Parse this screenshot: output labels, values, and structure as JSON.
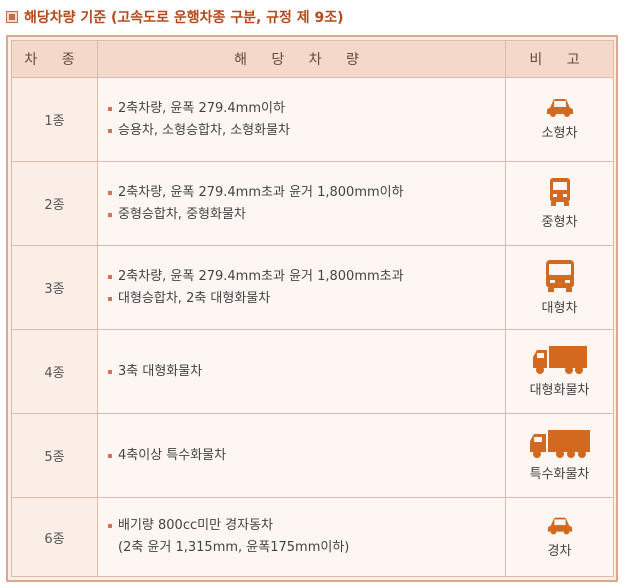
{
  "title": "해당차량 기준 (고속도로 운행차종 구분, 규정 제 9조)",
  "header": {
    "kind": "차 종",
    "desc": "해 당 차 량",
    "note": "비 고"
  },
  "colors": {
    "accent": "#b54a1c",
    "icon": "#d2691e",
    "header_bg": "#f4d9ca",
    "cell_bg": "#fdf6f2"
  },
  "rows": [
    {
      "kind": "1종",
      "lines": [
        "2축차량, 윤폭 279.4mm이하",
        "승용차, 소형승합차, 소형화물차"
      ],
      "note": "소형차",
      "icon": "car-icon"
    },
    {
      "kind": "2종",
      "lines": [
        "2축차량, 윤폭 279.4mm초과 윤거 1,800mm이하",
        "중형승합차, 중형화물차"
      ],
      "note": "중형차",
      "icon": "van-icon"
    },
    {
      "kind": "3종",
      "lines": [
        "2축차량, 윤폭 279.4mm초과 윤거 1,800mm초과",
        "대형승합차, 2축 대형화물차"
      ],
      "note": "대형차",
      "icon": "bus-icon"
    },
    {
      "kind": "4종",
      "lines": [
        "3축 대형화물차"
      ],
      "note": "대형화물차",
      "icon": "truck-icon"
    },
    {
      "kind": "5종",
      "lines": [
        "4축이상 특수화물차"
      ],
      "note": "특수화물차",
      "icon": "special-truck-icon"
    },
    {
      "kind": "6종",
      "lines": [
        "배기량 800cc미만 경자동차"
      ],
      "extra": "(2축 윤거 1,315mm, 윤폭175mm이하)",
      "note": "경차",
      "icon": "compact-car-icon"
    }
  ]
}
